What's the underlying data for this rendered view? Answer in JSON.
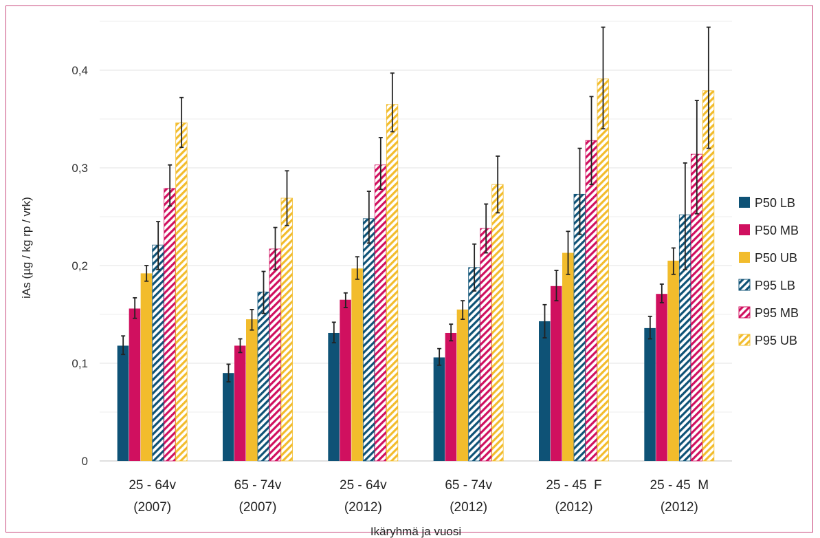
{
  "chart_data": {
    "type": "bar",
    "title": "",
    "xlabel": "Ikäryhmä ja vuosi",
    "ylabel": "iAs (µg / kg rp / vrk)",
    "ylim": [
      0,
      0.4
    ],
    "yticks": [
      "0",
      "0,1",
      "0,2",
      "0,3",
      "0,4"
    ],
    "grid": true,
    "legend_position": "right",
    "categories": [
      [
        "25 - 64v",
        "(2007)"
      ],
      [
        "65 - 74v",
        "(2007)"
      ],
      [
        "25 - 64v",
        "(2012)"
      ],
      [
        "65 - 74v",
        "(2012)"
      ],
      [
        "25 - 45  F",
        "(2012)"
      ],
      [
        "25 - 45  M",
        "(2012)"
      ]
    ],
    "series": [
      {
        "name": "P50 LB",
        "color": "#0e5276",
        "pattern": "solid",
        "values": [
          0.118,
          0.09,
          0.131,
          0.106,
          0.143,
          0.136
        ],
        "err_low": [
          0.109,
          0.081,
          0.121,
          0.098,
          0.126,
          0.125
        ],
        "err_high": [
          0.128,
          0.099,
          0.142,
          0.115,
          0.16,
          0.148
        ]
      },
      {
        "name": "P50 MB",
        "color": "#d0105f",
        "pattern": "solid",
        "values": [
          0.156,
          0.118,
          0.165,
          0.131,
          0.179,
          0.171
        ],
        "err_low": [
          0.146,
          0.111,
          0.157,
          0.123,
          0.164,
          0.162
        ],
        "err_high": [
          0.167,
          0.125,
          0.172,
          0.14,
          0.195,
          0.181
        ]
      },
      {
        "name": "P50 UB",
        "color": "#f2bc2c",
        "pattern": "solid",
        "values": [
          0.192,
          0.145,
          0.197,
          0.155,
          0.213,
          0.205
        ],
        "err_low": [
          0.184,
          0.134,
          0.186,
          0.145,
          0.191,
          0.191
        ],
        "err_high": [
          0.2,
          0.155,
          0.209,
          0.164,
          0.235,
          0.218
        ]
      },
      {
        "name": "P95 LB",
        "color": "#0e5276",
        "pattern": "hatch",
        "values": [
          0.221,
          0.173,
          0.248,
          0.198,
          0.273,
          0.252
        ],
        "err_low": [
          0.196,
          0.151,
          0.223,
          0.174,
          0.232,
          0.196
        ],
        "err_high": [
          0.245,
          0.194,
          0.276,
          0.222,
          0.32,
          0.305
        ]
      },
      {
        "name": "P95 MB",
        "color": "#d0105f",
        "pattern": "hatch",
        "values": [
          0.279,
          0.217,
          0.303,
          0.238,
          0.328,
          0.314
        ],
        "err_low": [
          0.261,
          0.196,
          0.278,
          0.213,
          0.283,
          0.253
        ],
        "err_high": [
          0.303,
          0.239,
          0.331,
          0.263,
          0.373,
          0.369
        ]
      },
      {
        "name": "P95 UB",
        "color": "#f2bc2c",
        "pattern": "hatch",
        "values": [
          0.346,
          0.269,
          0.365,
          0.283,
          0.391,
          0.379
        ],
        "err_low": [
          0.321,
          0.241,
          0.337,
          0.254,
          0.34,
          0.32
        ],
        "err_high": [
          0.372,
          0.297,
          0.397,
          0.312,
          0.444,
          0.444
        ]
      }
    ]
  }
}
